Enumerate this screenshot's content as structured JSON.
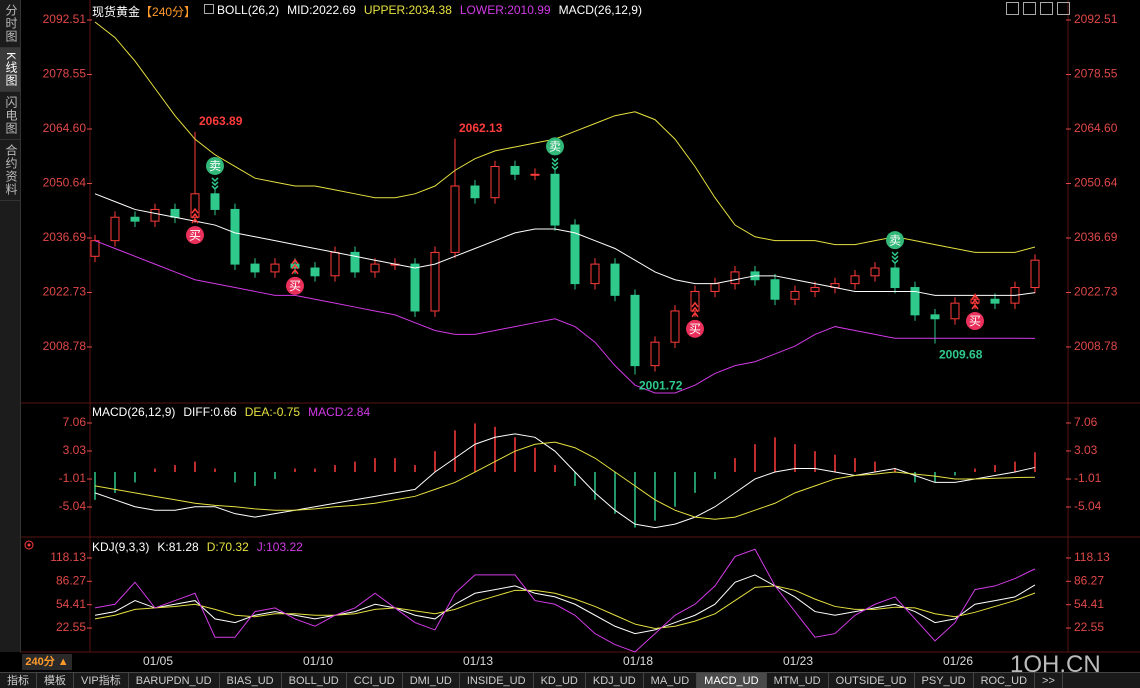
{
  "sidebar": [
    "分时图",
    "K线图",
    "闪电图",
    "合约资料"
  ],
  "period_button": "240分 ▲",
  "tabs": [
    "指标",
    "模板",
    "VIP指标",
    "BARUPDN_UD",
    "BIAS_UD",
    "BOLL_UD",
    "CCI_UD",
    "DMI_UD",
    "INSIDE_UD",
    "KD_UD",
    "KDJ_UD",
    "MA_UD",
    "MACD_UD",
    "MTM_UD",
    "OUTSIDE_UD",
    "PSY_UD",
    "ROC_UD",
    ">>"
  ],
  "watermark": "1QH.CN",
  "chart_data": [
    {
      "type": "candlestick",
      "title": "现货黄金",
      "subtitle": "【240分】",
      "indicator": "BOLL(26,2)",
      "indicator2": "MACD(26,12,9)",
      "categories": [
        null,
        null,
        null,
        "01/05",
        null,
        null,
        null,
        null,
        null,
        null,
        null,
        "01/10",
        null,
        null,
        null,
        null,
        null,
        null,
        null,
        "01/13",
        null,
        null,
        null,
        null,
        null,
        null,
        null,
        "01/18",
        null,
        null,
        null,
        null,
        null,
        null,
        null,
        "01/23",
        null,
        null,
        null,
        null,
        null,
        null,
        null,
        "01/26",
        null,
        null,
        null,
        null
      ],
      "open": [
        2032,
        2036,
        2042,
        2041,
        2044,
        2042,
        2048,
        2044,
        2030,
        2028,
        2030,
        2029,
        2027,
        2033,
        2028,
        2030,
        2030,
        2018,
        2033,
        2050,
        2047,
        2055,
        2053,
        2053,
        2040,
        2025,
        2030,
        2022,
        2004,
        2010,
        2018,
        2023,
        2025,
        2028,
        2026,
        2021,
        2023,
        2024,
        2025,
        2027,
        2029,
        2024,
        2017,
        2016,
        2020,
        2021,
        2020,
        2024
      ],
      "high": [
        2037.5,
        2043.5,
        2043.5,
        2045.5,
        2045.5,
        2063.89,
        2049.5,
        2045.5,
        2031.5,
        2031.5,
        2031.5,
        2030.5,
        2034.5,
        2034.5,
        2031.5,
        2031.5,
        2031.5,
        2034.5,
        2062.13,
        2051.5,
        2056.5,
        2056.5,
        2054.5,
        2054.5,
        2041.5,
        2031.5,
        2031.5,
        2023.5,
        2011.5,
        2019.5,
        2024.5,
        2026.5,
        2029.5,
        2029.5,
        2027.5,
        2024.5,
        2025.5,
        2026.5,
        2028.5,
        2030.5,
        2030.5,
        2025.5,
        2018.5,
        2021.5,
        2022.5,
        2022.5,
        2025.5,
        2032.5
      ],
      "low": [
        2030.5,
        2034.5,
        2039.5,
        2039.5,
        2040.5,
        2040.5,
        2042.5,
        2028.5,
        2026.5,
        2026.5,
        2027.5,
        2025.5,
        2025.5,
        2026.5,
        2026.5,
        2028.5,
        2016.5,
        2016.5,
        2031.5,
        2045.5,
        2045.5,
        2051.5,
        2051.5,
        2038.5,
        2023.5,
        2023.5,
        2020.5,
        2001.72,
        2002.5,
        2008.5,
        2016.5,
        2021.5,
        2023.5,
        2024.5,
        2019.5,
        2019.5,
        2021.5,
        2022.5,
        2023.5,
        2025.5,
        2022.5,
        2015.5,
        2009.68,
        2014.5,
        2018.5,
        2018.5,
        2018.5,
        2022.5
      ],
      "close": [
        2036,
        2042,
        2041,
        2044,
        2042,
        2048,
        2044,
        2030,
        2028,
        2030,
        2029,
        2027,
        2033,
        2028,
        2030,
        2030,
        2018,
        2033,
        2050,
        2047,
        2055,
        2053,
        2053,
        2040,
        2025,
        2030,
        2022,
        2004,
        2010,
        2018,
        2023,
        2025,
        2028,
        2026,
        2021,
        2023,
        2024,
        2025,
        2027,
        2029,
        2024,
        2017,
        2016,
        2020,
        2021,
        2020,
        2024,
        2031
      ],
      "up_color": "#ff3b3b",
      "down_color": "#2fc98c",
      "series": [
        {
          "name": "MID:2022.69",
          "color": "#ffffff",
          "values": [
            2048,
            2046,
            2044,
            2043,
            2042,
            2041,
            2040,
            2038,
            2037,
            2036,
            2035,
            2034,
            2033,
            2032,
            2031,
            2030,
            2029,
            2030,
            2032,
            2034,
            2036,
            2038,
            2039,
            2039,
            2038,
            2036,
            2034,
            2031,
            2028,
            2026,
            2025,
            2025,
            2026,
            2027,
            2027,
            2026,
            2025,
            2024,
            2023,
            2023,
            2023,
            2023,
            2022,
            2022,
            2022,
            2022,
            2022,
            2022.69
          ]
        },
        {
          "name": "UPPER:2034.38",
          "color": "#e6e040",
          "values": [
            2092,
            2088,
            2082,
            2075,
            2068,
            2062,
            2058,
            2055,
            2052,
            2051,
            2050,
            2050,
            2049,
            2048,
            2047,
            2047,
            2048,
            2050,
            2054,
            2057,
            2059,
            2060,
            2061,
            2062,
            2064,
            2066,
            2068,
            2069,
            2067,
            2062,
            2055,
            2047,
            2040,
            2037,
            2036,
            2036,
            2036,
            2035,
            2035,
            2036,
            2037,
            2036,
            2035,
            2034,
            2033,
            2033,
            2033,
            2034.38
          ]
        },
        {
          "name": "LOWER:2010.99",
          "color": "#d23ae6",
          "values": [
            2036,
            2034,
            2032,
            2030,
            2028,
            2026,
            2025,
            2024,
            2023,
            2022,
            2022,
            2021,
            2020,
            2019,
            2018,
            2017,
            2015,
            2013,
            2012,
            2012,
            2013,
            2014,
            2015,
            2016,
            2014,
            2010,
            2004,
            1999,
            1997,
            1997,
            1999,
            2002,
            2004,
            2005,
            2007,
            2009,
            2012,
            2014,
            2013,
            2012,
            2011,
            2011,
            2011,
            2011,
            2011,
            2011,
            2011,
            2010.99
          ]
        }
      ],
      "signals": {
        "buy_label": "买",
        "sell_label": "卖",
        "buy": [
          5,
          10,
          30,
          44
        ],
        "sell": [
          6,
          23,
          40
        ]
      },
      "ylim": [
        1995.2,
        2096.35
      ],
      "yticks": [
        2092.51,
        2078.55,
        {
          "value": 2064.6,
          "label": "2064.60"
        },
        2050.64,
        2036.69,
        2022.73,
        2008.78
      ],
      "grid": false
    },
    {
      "type": "combo",
      "title": "MACD(26,12,9)",
      "up_color": "#ff3b3b",
      "down_color": "#2fc98c",
      "series": [
        {
          "name": "DIFF:0.66",
          "type": "line",
          "color": "#ffffff",
          "values": [
            -3,
            -4,
            -5,
            -5.5,
            -5.5,
            -5,
            -5,
            -6,
            -6.5,
            -6,
            -5.5,
            -5,
            -4.5,
            -4,
            -3.5,
            -3,
            -2.5,
            0,
            2,
            4,
            5,
            5.5,
            5,
            3,
            0,
            -3,
            -5.5,
            -7.5,
            -8,
            -7.5,
            -6.5,
            -5,
            -3,
            -1,
            0,
            0.5,
            0.5,
            0,
            -0.5,
            0,
            0.5,
            -0.5,
            -1.5,
            -1.5,
            -1,
            -0.5,
            0,
            0.66
          ]
        },
        {
          "name": "DEA:-0.75",
          "type": "line",
          "color": "#e6e040",
          "values": [
            -2,
            -2.5,
            -3,
            -3.5,
            -4,
            -4.5,
            -4.8,
            -5,
            -5.3,
            -5.5,
            -5.5,
            -5.3,
            -5,
            -4.8,
            -4.5,
            -4,
            -3.5,
            -2.5,
            -1.5,
            0,
            1.5,
            3,
            4,
            4.3,
            3.5,
            2,
            0,
            -2,
            -4,
            -5.5,
            -6.5,
            -6.8,
            -6.5,
            -5.5,
            -4.5,
            -3,
            -2,
            -1,
            -0.5,
            -0.3,
            0,
            -0.3,
            -0.6,
            -1,
            -1,
            -0.9,
            -0.8,
            -0.75
          ]
        },
        {
          "name": "MACD:2.84",
          "type": "bar",
          "color": "#d23ae6",
          "values": [
            -4,
            -3,
            -1.5,
            0.5,
            1,
            1.5,
            0.5,
            -1.5,
            -2,
            -1,
            0.5,
            0.5,
            1,
            1.5,
            2,
            2,
            1,
            3,
            6,
            7,
            6.5,
            5,
            3.5,
            1,
            -2,
            -4,
            -6,
            -8,
            -7,
            -5,
            -3,
            -1,
            2,
            4,
            5,
            4,
            3,
            2.5,
            2,
            1.5,
            0.5,
            -1.5,
            -1.5,
            -0.5,
            0.5,
            1,
            1.5,
            2.84
          ]
        }
      ],
      "ylim": [
        -9.07,
        9.65
      ],
      "yticks": [
        7.06,
        3.03,
        -1.01,
        -5.04
      ],
      "grid": false
    },
    {
      "type": "line",
      "title": "KDJ(9,3,3)",
      "series": [
        {
          "name": "K:81.28",
          "color": "#ffffff",
          "values": [
            40,
            45,
            60,
            50,
            55,
            60,
            35,
            30,
            40,
            45,
            40,
            35,
            40,
            45,
            55,
            50,
            40,
            35,
            55,
            70,
            75,
            80,
            70,
            65,
            55,
            40,
            25,
            15,
            20,
            30,
            40,
            55,
            85,
            95,
            80,
            65,
            45,
            40,
            45,
            50,
            55,
            45,
            30,
            35,
            55,
            60,
            65,
            81.28
          ]
        },
        {
          "name": "D:70.32",
          "color": "#e6e040",
          "values": [
            35,
            40,
            48,
            50,
            52,
            55,
            48,
            40,
            38,
            42,
            42,
            40,
            40,
            42,
            48,
            50,
            46,
            42,
            48,
            58,
            66,
            74,
            74,
            70,
            62,
            52,
            40,
            28,
            22,
            25,
            32,
            42,
            60,
            78,
            80,
            74,
            62,
            52,
            48,
            48,
            51,
            50,
            42,
            38,
            44,
            52,
            60,
            70.32
          ]
        },
        {
          "name": "J:103.22",
          "color": "#d23ae6",
          "values": [
            50,
            55,
            85,
            50,
            60,
            70,
            10,
            10,
            45,
            50,
            35,
            25,
            40,
            50,
            70,
            50,
            30,
            20,
            70,
            95,
            95,
            95,
            60,
            55,
            40,
            15,
            0,
            -10,
            15,
            40,
            55,
            80,
            120,
            130,
            80,
            45,
            10,
            15,
            40,
            55,
            65,
            35,
            5,
            30,
            75,
            80,
            90,
            103.22
          ]
        }
      ],
      "ylim": [
        -10.1,
        142.6
      ],
      "yticks": [
        118.13,
        86.27,
        54.41,
        22.55
      ],
      "grid": false
    }
  ]
}
